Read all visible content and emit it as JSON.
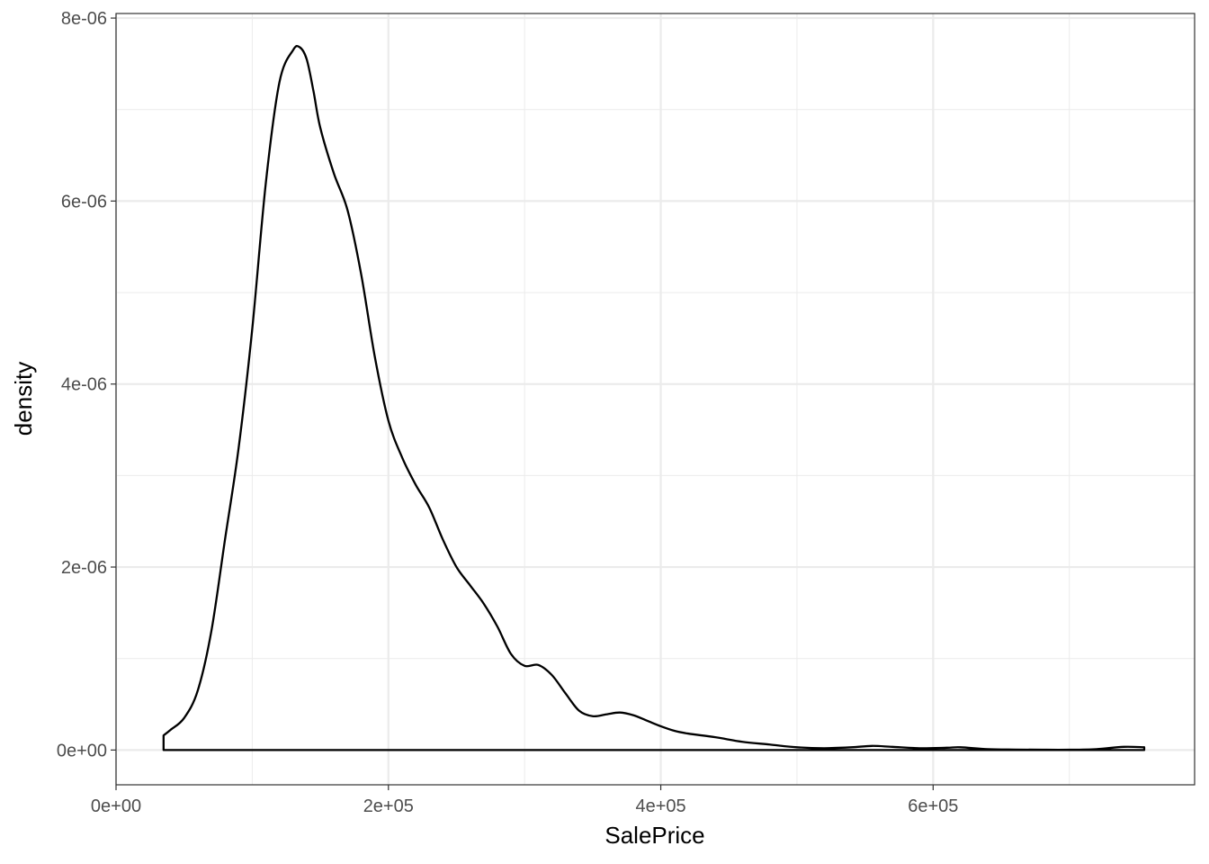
{
  "chart_data": {
    "type": "area",
    "xlabel": "SalePrice",
    "ylabel": "density",
    "xlim": [
      0,
      792000
    ],
    "ylim": [
      -3.8e-07,
      8.05e-06
    ],
    "x_ticks": [
      {
        "value": 0,
        "label": "0e+00"
      },
      {
        "value": 200000,
        "label": "2e+05"
      },
      {
        "value": 400000,
        "label": "4e+05"
      },
      {
        "value": 600000,
        "label": "6e+05"
      }
    ],
    "x_minor_ticks": [
      100000,
      300000,
      500000,
      700000
    ],
    "y_ticks": [
      {
        "value": 0,
        "label": "0e+00"
      },
      {
        "value": 2e-06,
        "label": "2e-06"
      },
      {
        "value": 4e-06,
        "label": "4e-06"
      },
      {
        "value": 6e-06,
        "label": "6e-06"
      },
      {
        "value": 8e-06,
        "label": "8e-06"
      }
    ],
    "y_minor_ticks": [
      1e-06,
      3e-06,
      5e-06,
      7e-06
    ],
    "grid": true,
    "fill": "none",
    "line_color": "#000000",
    "series": [
      {
        "x": [
          34900,
          40000,
          50000,
          60000,
          70000,
          80000,
          90000,
          100000,
          110000,
          120000,
          130000,
          135000,
          140000,
          145000,
          150000,
          160000,
          170000,
          180000,
          190000,
          200000,
          210000,
          220000,
          230000,
          240000,
          250000,
          260000,
          270000,
          280000,
          290000,
          300000,
          310000,
          320000,
          330000,
          340000,
          350000,
          360000,
          370000,
          380000,
          390000,
          400000,
          410000,
          420000,
          440000,
          460000,
          480000,
          500000,
          520000,
          540000,
          555000,
          570000,
          590000,
          610000,
          620000,
          640000,
          660000,
          680000,
          700000,
          720000,
          740000,
          755000
        ],
        "y": [
          1.6e-07,
          2.2e-07,
          3.5e-07,
          6.5e-07,
          1.3e-06,
          2.3e-06,
          3.3e-06,
          4.6e-06,
          6.2e-06,
          7.3e-06,
          7.65e-06,
          7.68e-06,
          7.55e-06,
          7.2e-06,
          6.8e-06,
          6.3e-06,
          5.9e-06,
          5.2e-06,
          4.3e-06,
          3.6e-06,
          3.2e-06,
          2.9e-06,
          2.65e-06,
          2.3e-06,
          2e-06,
          1.8e-06,
          1.6e-06,
          1.35e-06,
          1.05e-06,
          9.2e-07,
          9.3e-07,
          8.2e-07,
          6.2e-07,
          4.3e-07,
          3.7e-07,
          3.9e-07,
          4.1e-07,
          3.8e-07,
          3.2e-07,
          2.6e-07,
          2.1e-07,
          1.8e-07,
          1.4e-07,
          9e-08,
          6e-08,
          3e-08,
          2e-08,
          3e-08,
          4.5e-08,
          3.5e-08,
          2e-08,
          2.5e-08,
          3e-08,
          1e-08,
          5e-09,
          3e-09,
          3e-09,
          1e-08,
          3.5e-08,
          3e-08
        ]
      }
    ]
  }
}
